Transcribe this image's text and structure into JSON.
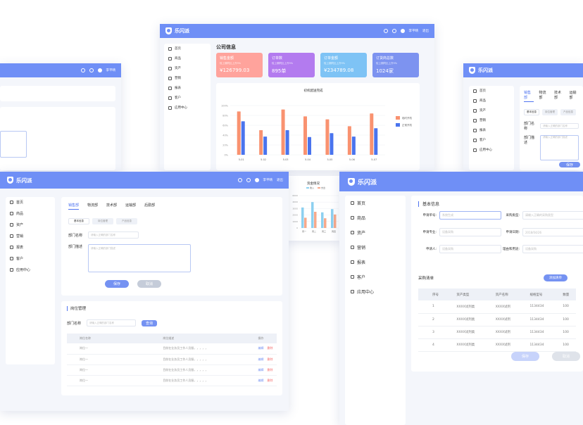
{
  "app": {
    "name": "乐闪派",
    "user": "李平晴",
    "logout": "退出"
  },
  "nav": [
    "首页",
    "商品",
    "资产",
    "营销",
    "报表",
    "客户",
    "应用中心"
  ],
  "colors": {
    "brand": "#6f8ff6",
    "orange": "#f99270",
    "blue": "#4a74ee"
  },
  "company": {
    "title": "公司信息",
    "stats": [
      {
        "title": "销售金额",
        "sub": "较上期同比上升9%",
        "value": "¥126799.03",
        "color": "#ffa39c"
      },
      {
        "title": "订单数",
        "sub": "较上期同比上升9%",
        "value": "895单",
        "color": "#b37bef"
      },
      {
        "title": "订单金额",
        "sub": "较上期同比上升9%",
        "value": "¥234789.08",
        "color": "#7ec3f5"
      },
      {
        "title": "订货商总数",
        "sub": "较上期同比上升9%",
        "value": "1024家",
        "color": "#7d93f0"
      }
    ]
  },
  "chart_data": {
    "type": "bar",
    "title": "初机配送完成",
    "categories": [
      "5-01",
      "5-02",
      "5-03",
      "5-04",
      "5-05",
      "5-06",
      "5-07"
    ],
    "series": [
      {
        "name": "临时开机",
        "values": [
          88,
          50,
          92,
          78,
          72,
          58,
          84
        ],
        "color": "#f99270"
      },
      {
        "name": "正常开机",
        "values": [
          68,
          37,
          50,
          36,
          44,
          37,
          54
        ],
        "color": "#4a74ee"
      }
    ],
    "yticks": [
      "0%",
      "20%",
      "40%",
      "60%",
      "80%",
      "100%"
    ],
    "ylim": [
      0,
      100
    ]
  },
  "chart2": {
    "title": "资金情况",
    "legend": [
      "收入",
      "支出"
    ],
    "categories": [
      "周一",
      "周二",
      "周三",
      "周四"
    ],
    "yticks": [
      "6000",
      "4000",
      "3000",
      "2000",
      "1000",
      "0"
    ],
    "series": [
      {
        "values": [
          3800,
          4800,
          2900,
          3500
        ],
        "color": "#8dd0f0"
      },
      {
        "values": [
          1900,
          3000,
          1800,
          2500
        ],
        "color": "#f7a98b"
      }
    ]
  },
  "dept": {
    "tabs": [
      "销售部",
      "物流部",
      "技术部",
      "运输部",
      "后勤部"
    ],
    "subtabs": [
      "基本信息",
      "岗位管理",
      "产品信息"
    ],
    "name_label": "部门名称",
    "name_ph": "请输入正确的部门名称",
    "desc_label": "部门描述",
    "desc_ph": "请输入正确的部门描述",
    "save": "保存",
    "cancel": "取消",
    "post_title": "岗位管理",
    "post_name": "部门名称",
    "post_ph": "请输入正确的部门名称",
    "search": "查询",
    "cols": [
      "岗位名称",
      "岗位描述",
      "操作"
    ],
    "rows": [
      [
        "岗位一",
        "目前在业务员工作人员服，，，，，",
        "编辑",
        "删除"
      ],
      [
        "岗位一",
        "目前在业务员工作人员服，，，，，",
        "编辑",
        "删除"
      ],
      [
        "岗位一",
        "目前在业务员工作人员服，，，，，",
        "编辑",
        "删除"
      ],
      [
        "岗位一",
        "目前在业务员工作人员服，，，，，",
        "编辑",
        "删除"
      ]
    ]
  },
  "purchase": {
    "title": "基本信息",
    "fields": [
      [
        "申请单号:",
        "系统生成"
      ],
      [
        "采购类型:",
        "请输入正确的采购类型"
      ],
      [
        "申请专业:",
        "设备采购"
      ],
      [
        "申请日期:",
        "2018/04/26"
      ],
      [
        "申请人:",
        "设备采购"
      ],
      [
        "理由和用途:",
        "设备采购"
      ]
    ],
    "list_title": "采购清单",
    "add_btn": "添加清单",
    "cols": [
      "序号",
      "资产类型",
      "资产名称",
      "规格型号",
      "数量"
    ],
    "rows": [
      [
        "1",
        "XXXX试剂类",
        "XXXX试剂",
        "1134434",
        "100"
      ],
      [
        "2",
        "XXXX试剂类",
        "XXXX试剂",
        "1134434",
        "100"
      ],
      [
        "3",
        "XXXX试剂类",
        "XXXX试剂",
        "1134434",
        "100"
      ],
      [
        "4",
        "XXXX试剂类",
        "XXXX试剂",
        "1134434",
        "100"
      ]
    ],
    "save": "保存",
    "cancel": "取消"
  },
  "right": {
    "tabs": [
      "销售部",
      "物流部",
      "技术部",
      "运输部"
    ],
    "subtabs": [
      "基本信息",
      "岗位管理",
      "产品信息"
    ],
    "name_label": "部门名称",
    "name_ph": "请输入正确的部门名称",
    "desc_label": "部门描述",
    "desc_ph": "请输入正确的部门描述",
    "save": "保存"
  }
}
